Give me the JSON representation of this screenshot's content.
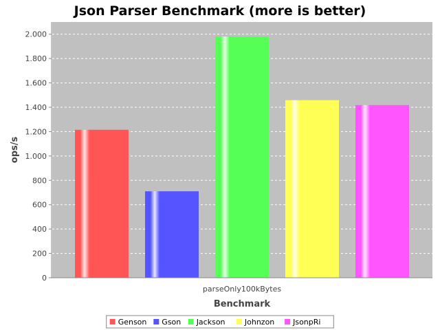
{
  "chart_data": {
    "type": "bar",
    "title": "Json Parser Benchmark (more is better)",
    "xlabel": "Benchmark",
    "ylabel": "ops/s",
    "categories": [
      "parseOnly100kBytes"
    ],
    "ylim": [
      0,
      2100
    ],
    "yticks": [
      0,
      200,
      400,
      600,
      800,
      1000,
      1200,
      1400,
      1600,
      1800,
      2000
    ],
    "ytick_labels": [
      "0",
      "200",
      "400",
      "600",
      "800",
      "1.000",
      "1.200",
      "1.400",
      "1.600",
      "1.800",
      "2.000"
    ],
    "grid": true,
    "legend_position": "bottom",
    "series": [
      {
        "name": "Genson",
        "values": [
          1215
        ],
        "color": "#ff5555"
      },
      {
        "name": "Gson",
        "values": [
          710
        ],
        "color": "#5555ff"
      },
      {
        "name": "Jackson",
        "values": [
          1980
        ],
        "color": "#55ff55"
      },
      {
        "name": "Johnzon",
        "values": [
          1458
        ],
        "color": "#ffff55"
      },
      {
        "name": "JsonpRi",
        "values": [
          1418
        ],
        "color": "#ff55ff"
      }
    ],
    "plot_background": "#c0c0c0"
  }
}
